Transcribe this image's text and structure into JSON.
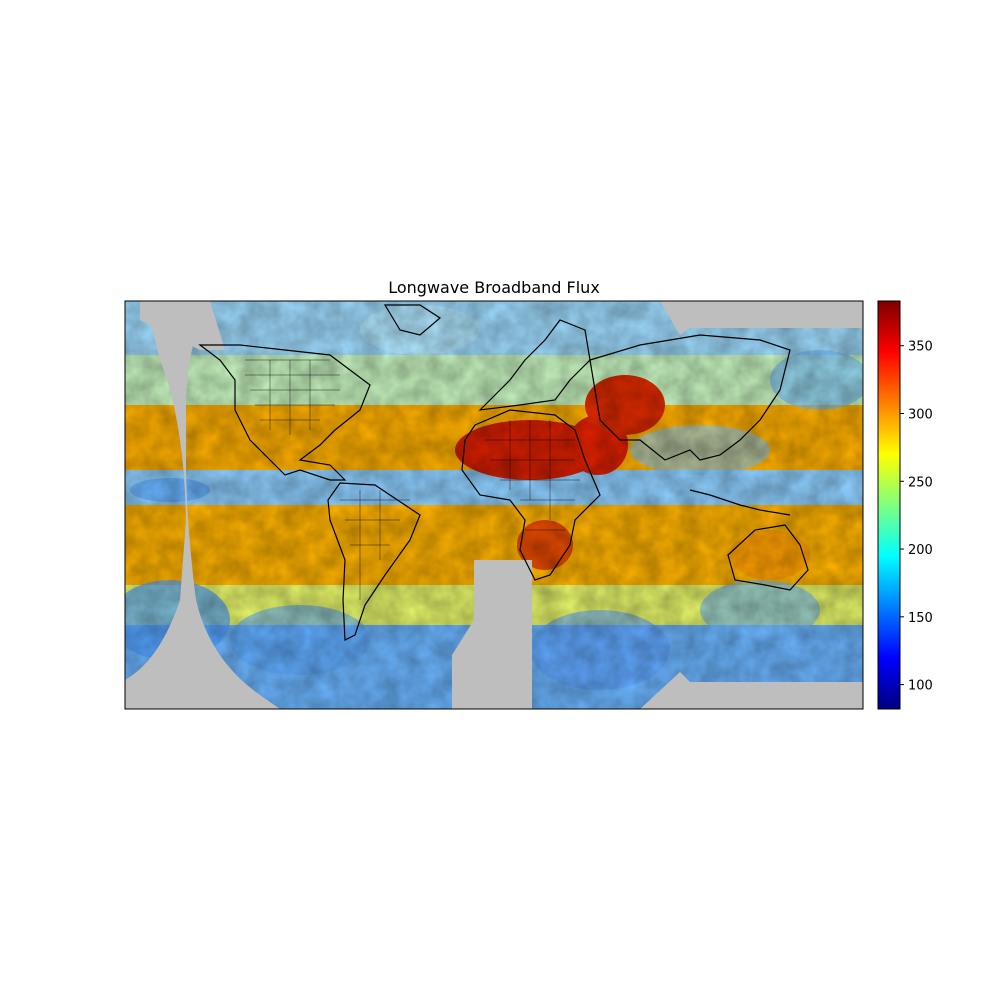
{
  "title": "Longwave Broadband Flux",
  "colormap": {
    "name": "jet",
    "stops": [
      "#00007f",
      "#0000ff",
      "#007fff",
      "#00ffff",
      "#7fff7f",
      "#ffff00",
      "#ff7f00",
      "#ff0000",
      "#7f0000"
    ]
  },
  "no_data_color": "#bebebe",
  "colorbar": {
    "range": [
      82,
      383
    ],
    "ticks": [
      100,
      150,
      200,
      250,
      300,
      350
    ]
  },
  "chart_data": {
    "type": "heatmap",
    "title": "Longwave Broadband Flux",
    "xlabel": "",
    "ylabel": "",
    "value_range": [
      82,
      383
    ],
    "colorbar_ticks": [
      100,
      150,
      200,
      250,
      300,
      350
    ]
  }
}
